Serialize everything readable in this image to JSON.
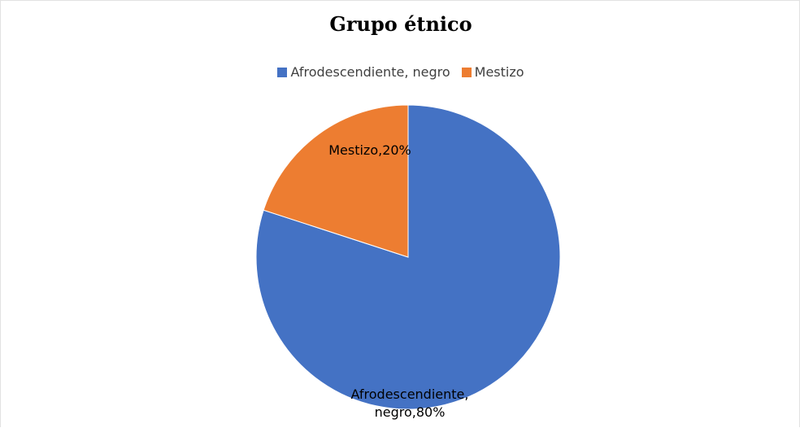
{
  "chart_data": {
    "type": "pie",
    "title": "Grupo étnico",
    "categories": [
      "Afrodescendiente, negro",
      "Mestizo"
    ],
    "values": [
      80,
      20
    ],
    "colors": [
      "#4472C4",
      "#ED7D31"
    ],
    "data_labels": [
      [
        "Afrodescendiente,",
        "negro,80%"
      ],
      [
        "Mestizo,20%"
      ]
    ],
    "legend_position": "top"
  }
}
